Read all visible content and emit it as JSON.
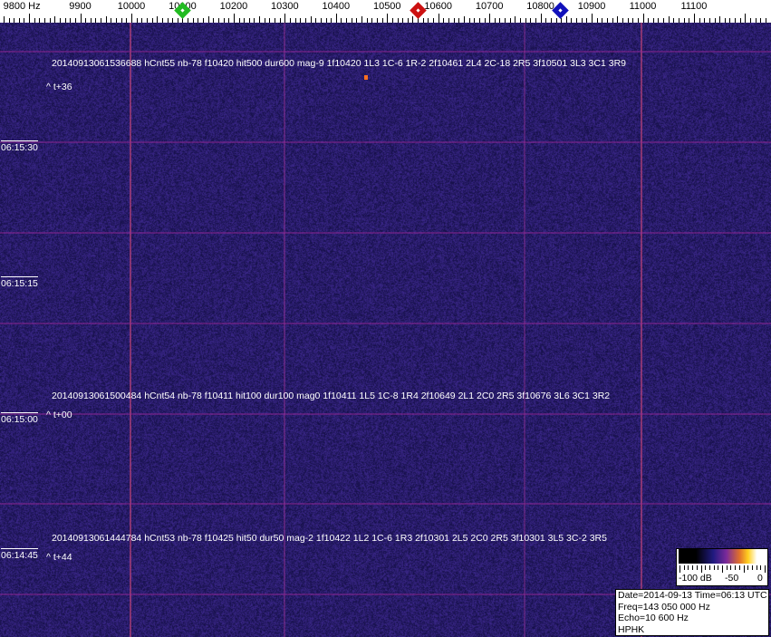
{
  "freq_scale": {
    "labels": [
      {
        "text": "9800 Hz",
        "hz": 9800
      },
      {
        "text": "9900",
        "hz": 9900
      },
      {
        "text": "10000",
        "hz": 10000
      },
      {
        "text": "10100",
        "hz": 10100
      },
      {
        "text": "10200",
        "hz": 10200
      },
      {
        "text": "10300",
        "hz": 10300
      },
      {
        "text": "10400",
        "hz": 10400
      },
      {
        "text": "10500",
        "hz": 10500
      },
      {
        "text": "10600",
        "hz": 10600
      },
      {
        "text": "10700",
        "hz": 10700
      },
      {
        "text": "10800",
        "hz": 10800
      },
      {
        "text": "10900",
        "hz": 10900
      },
      {
        "text": "11000",
        "hz": 11000
      },
      {
        "text": "11100",
        "hz": 11100
      }
    ],
    "markers": [
      {
        "color": "#22bb22",
        "hz": 10100
      },
      {
        "color": "#cc1111",
        "hz": 10560
      },
      {
        "color": "#1111bb",
        "hz": 10838
      }
    ]
  },
  "detections": [
    {
      "text": "20140913061536688 hCnt55 nb-78 f10420 hit500 dur600 mag-9 1f10420 1L3 1C-6 1R-2 2f10461 2L4 2C-18 2R5 3f10501 3L3 3C1 3R9",
      "offset": "^ t+36"
    },
    {
      "text": "20140913061500484 hCnt54 nb-78 f10411 hit100 dur100 mag0 1f10411 1L5 1C-8 1R4 2f10649 2L1 2C0 2R5 3f10676 3L6 3C1 3R2",
      "offset": "^ t+00"
    },
    {
      "text": "20140913061444784 hCnt53 nb-78 f10425 hit50 dur50 mag-2 1f10422 1L2 1C-6 1R3 2f10301 2L5 2C0 2R5 3f10301 3L5 3C-2 3R5",
      "offset": "^ t+44"
    }
  ],
  "time_labels": [
    "06:15:30",
    "06:15:15",
    "06:15:00",
    "06:14:45"
  ],
  "colorbar": {
    "labels": [
      "-100 dB",
      "-50",
      "0"
    ]
  },
  "info": {
    "date_time": "Date=2014-09-13 Time=06:13 UTC",
    "freq": "Freq=143 050 000 Hz",
    "echo": "Echo=10 600 Hz",
    "station": "HPHK"
  }
}
